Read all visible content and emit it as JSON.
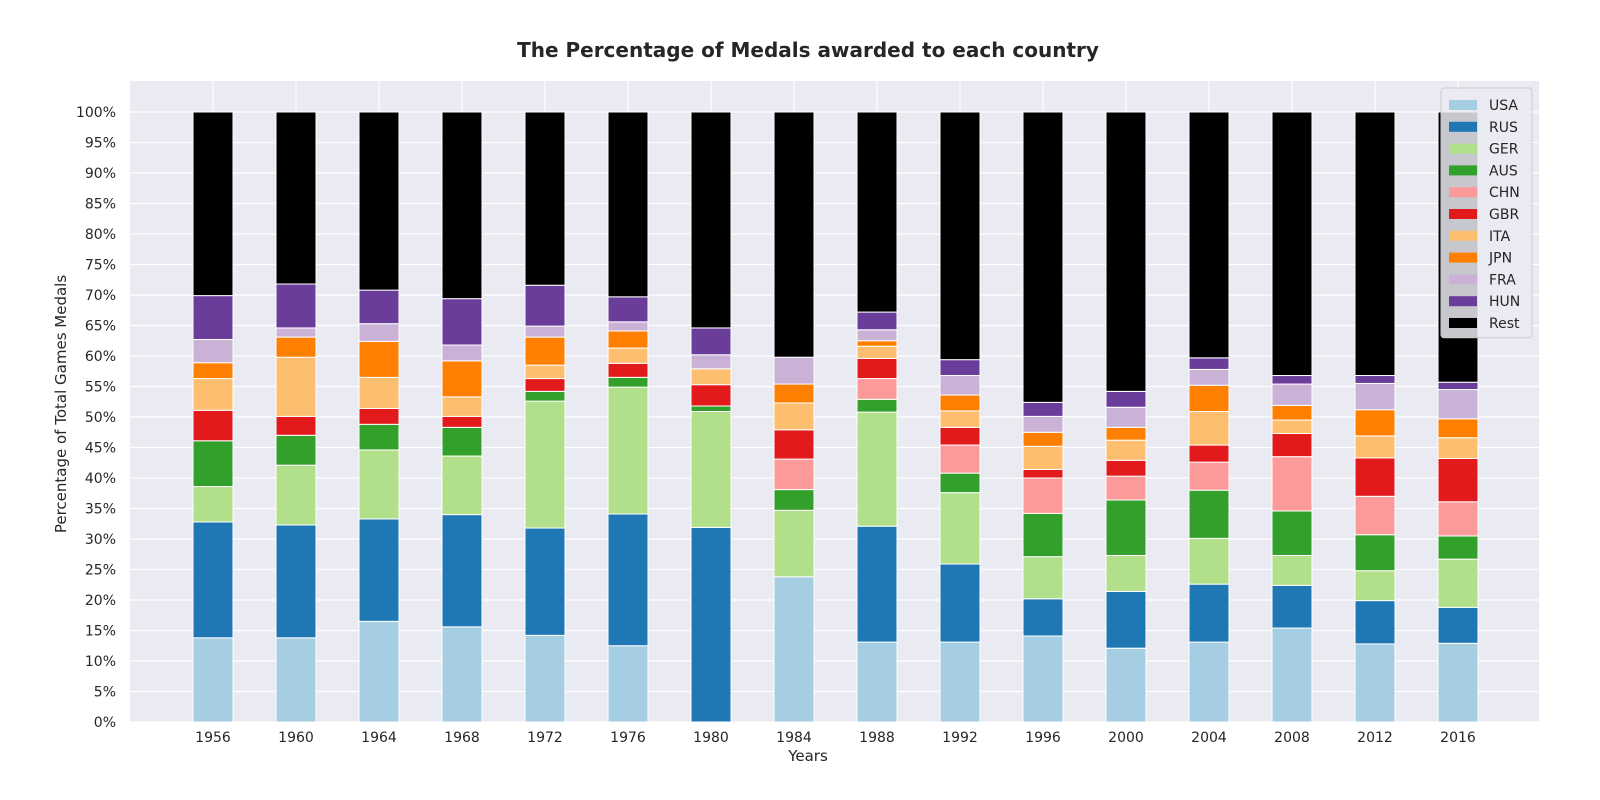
{
  "chart_data": {
    "type": "bar",
    "stacked": true,
    "title": "The Percentage of Medals awarded to each country",
    "xlabel": "Years",
    "ylabel": "Percentage of Total Games Medals",
    "ylim": [
      0,
      100
    ],
    "y_ticks": [
      "0%",
      "5%",
      "10%",
      "15%",
      "20%",
      "25%",
      "30%",
      "35%",
      "40%",
      "45%",
      "50%",
      "55%",
      "60%",
      "65%",
      "70%",
      "75%",
      "80%",
      "85%",
      "90%",
      "95%",
      "100%"
    ],
    "grid": true,
    "legend_position": "top-right",
    "categories": [
      "1956",
      "1960",
      "1964",
      "1968",
      "1972",
      "1976",
      "1980",
      "1984",
      "1988",
      "1992",
      "1996",
      "2000",
      "2004",
      "2008",
      "2012",
      "2016"
    ],
    "series": [
      {
        "name": "USA",
        "color": "#a6cee3",
        "values": [
          13.8,
          13.8,
          16.5,
          15.6,
          14.2,
          12.5,
          0.0,
          23.8,
          13.1,
          13.1,
          14.1,
          12.1,
          13.1,
          15.4,
          12.8,
          12.9
        ]
      },
      {
        "name": "RUS",
        "color": "#1f78b4",
        "values": [
          19.0,
          18.5,
          16.8,
          18.4,
          17.6,
          21.6,
          31.9,
          0.0,
          19.0,
          12.8,
          6.1,
          9.3,
          9.5,
          7.0,
          7.1,
          5.9
        ]
      },
      {
        "name": "GER",
        "color": "#b2df8a",
        "values": [
          5.8,
          9.8,
          11.3,
          9.6,
          20.8,
          20.8,
          19.0,
          10.9,
          18.7,
          11.7,
          6.9,
          5.9,
          7.5,
          4.9,
          4.9,
          7.9
        ]
      },
      {
        "name": "AUS",
        "color": "#33a02c",
        "values": [
          7.5,
          4.9,
          4.2,
          4.7,
          1.6,
          1.6,
          0.9,
          3.4,
          2.1,
          3.2,
          7.1,
          9.1,
          7.9,
          7.3,
          5.9,
          3.8
        ]
      },
      {
        "name": "CHN",
        "color": "#fb9a99",
        "values": [
          0.0,
          0.0,
          0.0,
          0.0,
          0.0,
          0.0,
          0.0,
          5.0,
          3.4,
          4.6,
          5.8,
          3.9,
          4.6,
          8.9,
          6.3,
          5.6
        ]
      },
      {
        "name": "GBR",
        "color": "#e31a1c",
        "values": [
          5.0,
          3.1,
          2.6,
          1.8,
          2.1,
          2.3,
          3.5,
          4.8,
          3.3,
          2.9,
          1.4,
          2.6,
          2.8,
          3.8,
          6.3,
          7.1
        ]
      },
      {
        "name": "ITA",
        "color": "#fdbf6f",
        "values": [
          5.2,
          9.7,
          5.1,
          3.2,
          2.2,
          2.5,
          2.6,
          4.4,
          2.0,
          2.7,
          3.8,
          3.3,
          5.5,
          2.2,
          3.6,
          3.4
        ]
      },
      {
        "name": "JPN",
        "color": "#ff7f00",
        "values": [
          2.6,
          3.3,
          5.9,
          5.9,
          4.6,
          2.8,
          0.0,
          3.1,
          0.9,
          2.6,
          2.3,
          2.1,
          4.3,
          2.4,
          4.3,
          3.1
        ]
      },
      {
        "name": "FRA",
        "color": "#cab2d6",
        "values": [
          3.8,
          1.5,
          2.9,
          2.6,
          1.8,
          1.5,
          2.3,
          4.4,
          1.8,
          3.2,
          2.6,
          3.3,
          2.6,
          3.5,
          4.3,
          4.8
        ]
      },
      {
        "name": "HUN",
        "color": "#6a3d9a",
        "values": [
          7.2,
          7.2,
          5.5,
          7.6,
          6.7,
          4.1,
          4.4,
          0.0,
          2.9,
          2.6,
          2.3,
          2.6,
          1.9,
          1.4,
          1.3,
          1.2
        ]
      },
      {
        "name": "Rest",
        "color": "#000000",
        "values": [
          30.1,
          28.2,
          29.2,
          30.6,
          28.4,
          30.3,
          35.4,
          40.2,
          32.8,
          40.6,
          47.6,
          45.8,
          40.3,
          43.2,
          43.2,
          44.3
        ]
      }
    ]
  }
}
